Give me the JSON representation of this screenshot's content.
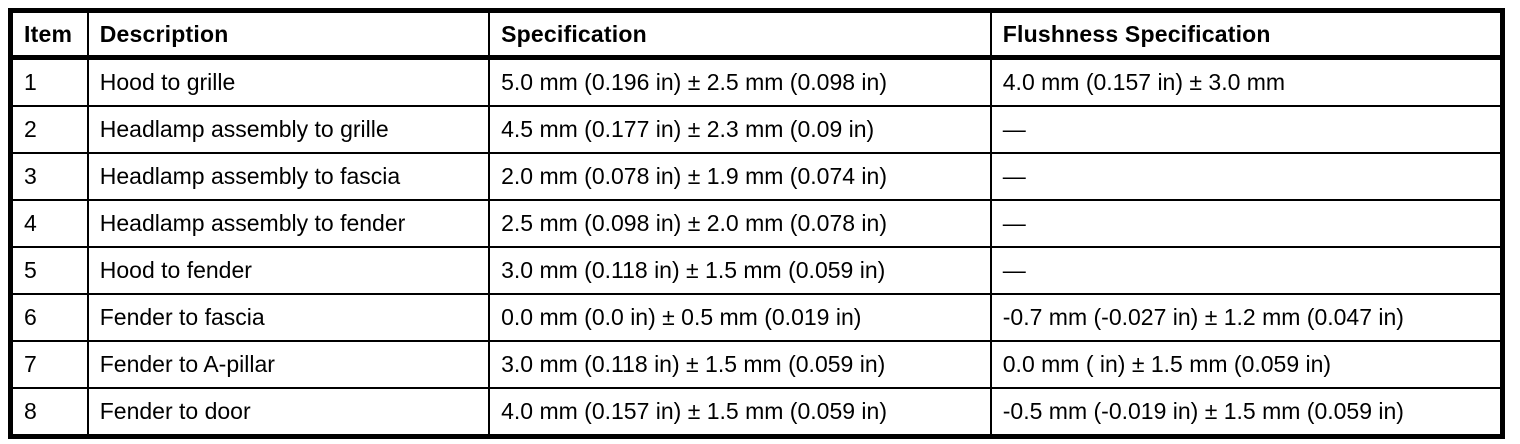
{
  "table": {
    "columns": {
      "item": "Item",
      "description": "Description",
      "specification": "Specification",
      "flushness": "Flushness Specification"
    },
    "rows": [
      {
        "item": "1",
        "description": "Hood to grille",
        "specification": "5.0 mm (0.196 in) ± 2.5 mm (0.098 in)",
        "flushness": "4.0 mm (0.157 in) ± 3.0 mm"
      },
      {
        "item": "2",
        "description": "Headlamp assembly to grille",
        "specification": "4.5 mm (0.177 in) ± 2.3 mm (0.09 in)",
        "flushness": "—"
      },
      {
        "item": "3",
        "description": "Headlamp assembly to fascia",
        "specification": "2.0 mm (0.078 in) ± 1.9 mm (0.074 in)",
        "flushness": "—"
      },
      {
        "item": "4",
        "description": "Headlamp assembly to fender",
        "specification": "2.5 mm (0.098 in) ± 2.0 mm (0.078 in)",
        "flushness": "—"
      },
      {
        "item": "5",
        "description": "Hood to fender",
        "specification": "3.0 mm (0.118 in) ± 1.5 mm (0.059 in)",
        "flushness": "—"
      },
      {
        "item": "6",
        "description": "Fender to fascia",
        "specification": "0.0 mm (0.0 in) ± 0.5 mm (0.019 in)",
        "flushness": "-0.7 mm (-0.027 in) ± 1.2 mm (0.047 in)"
      },
      {
        "item": "7",
        "description": "Fender to A-pillar",
        "specification": "3.0 mm (0.118 in) ± 1.5 mm (0.059 in)",
        "flushness": "0.0 mm ( in) ± 1.5 mm (0.059 in)"
      },
      {
        "item": "8",
        "description": "Fender to door",
        "specification": "4.0 mm (0.157 in) ± 1.5 mm (0.059 in)",
        "flushness": "-0.5 mm (-0.019 in) ± 1.5 mm (0.059 in)"
      }
    ]
  }
}
